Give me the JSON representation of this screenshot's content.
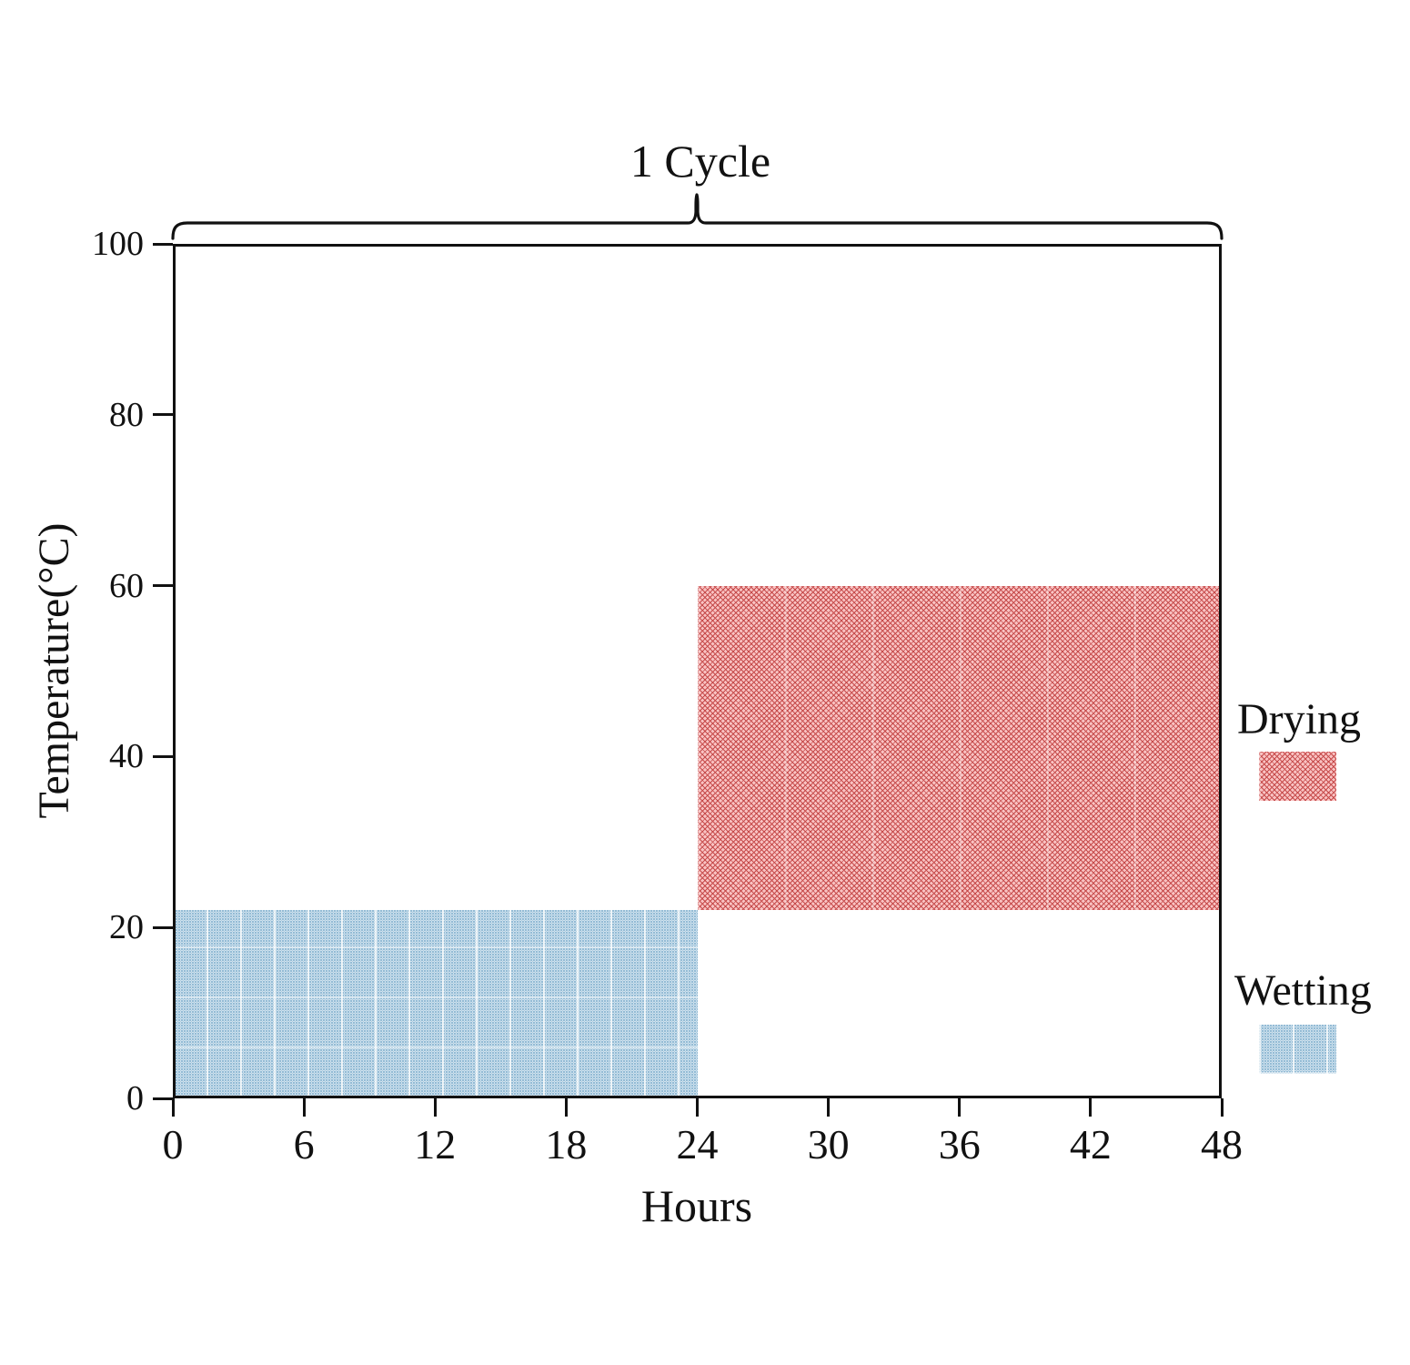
{
  "chart_data": {
    "type": "area",
    "title": "1 Cycle",
    "xlabel": "Hours",
    "ylabel": "Temperature(°C)",
    "x_range": [
      0,
      48
    ],
    "y_range": [
      0,
      100
    ],
    "x_ticks": [
      0,
      6,
      12,
      18,
      24,
      30,
      36,
      42,
      48
    ],
    "y_ticks": [
      0,
      20,
      40,
      60,
      80,
      100
    ],
    "grid": false,
    "legend_position": "right-outside",
    "regions": [
      {
        "label": "Wetting",
        "x_start": 0,
        "x_end": 24,
        "y_start": 0,
        "y_end": 22,
        "pattern": "dot-grid",
        "base_color": "#cfe1ec",
        "accent_color": "#86b3d0"
      },
      {
        "label": "Drying",
        "x_start": 24,
        "x_end": 48,
        "y_start": 22,
        "y_end": 60,
        "pattern": "cross-hatch",
        "base_color": "#f2a5a5",
        "accent_color": "#c64b4b"
      }
    ],
    "legend": [
      {
        "label": "Drying",
        "pattern": "cross-hatch"
      },
      {
        "label": "Wetting",
        "pattern": "dot-grid"
      }
    ],
    "annotations": [
      {
        "kind": "brace",
        "text": "1 Cycle",
        "x_start": 0,
        "x_end": 48
      }
    ]
  }
}
